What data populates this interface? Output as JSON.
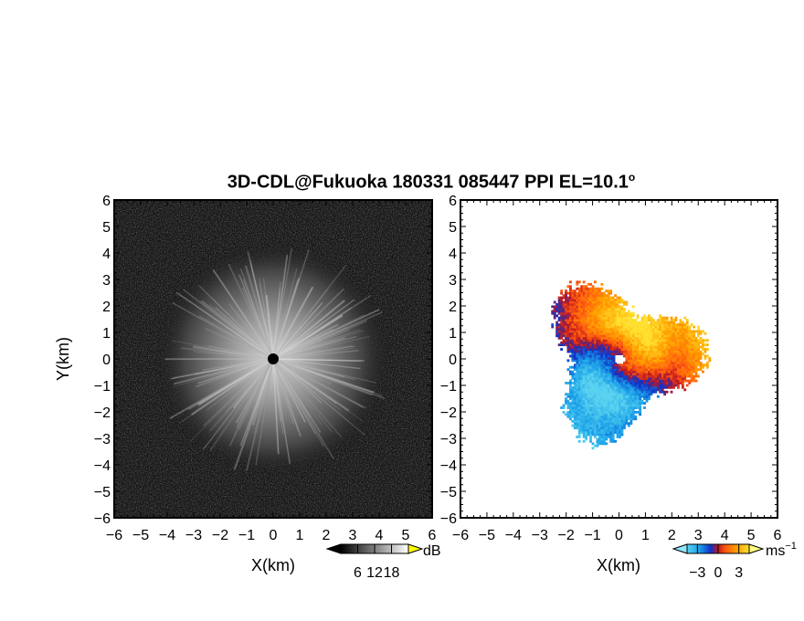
{
  "title": "3D-CDL@Fukuoka 180331 085447 PPI EL=10.1",
  "title_degree": "o",
  "colors": {
    "background": "#ffffff",
    "axes": "#000000"
  },
  "chart_data": [
    {
      "type": "heatmap",
      "panel": "left",
      "quantity": "SNR intensity (grayscale)",
      "xlabel": "X(km)",
      "ylabel": "Y(km)",
      "xlim": [
        -6,
        6
      ],
      "ylim": [
        -6,
        6
      ],
      "xticks": [
        -6,
        -5,
        -4,
        -3,
        -2,
        -1,
        0,
        1,
        2,
        3,
        4,
        5,
        6
      ],
      "yticks": [
        -6,
        -5,
        -4,
        -3,
        -2,
        -1,
        0,
        1,
        2,
        3,
        4,
        5,
        6
      ],
      "colormap": "grayscale",
      "colorbar": {
        "unit": "dB",
        "ticks": [
          6,
          12,
          18
        ],
        "range": [
          0,
          24
        ]
      },
      "features": {
        "echo_radius_km": 4.3,
        "center_blank": true
      }
    },
    {
      "type": "heatmap",
      "panel": "right",
      "quantity": "Doppler velocity",
      "xlabel": "X(km)",
      "xlim": [
        -6,
        6
      ],
      "ylim": [
        -6,
        6
      ],
      "xticks": [
        -6,
        -5,
        -4,
        -3,
        -2,
        -1,
        0,
        1,
        2,
        3,
        4,
        5,
        6
      ],
      "yticks": [
        -6,
        -5,
        -4,
        -3,
        -2,
        -1,
        0,
        1,
        2,
        3,
        4,
        5,
        6
      ],
      "colormap": "blue-cyan-red-yellow diverging",
      "colorbar": {
        "unit": "ms",
        "unit_exponent": "−1",
        "ticks": [
          -3,
          0,
          3
        ],
        "range": [
          -4.5,
          4.5
        ]
      },
      "features": {
        "echo_radius_km": 3.0,
        "approaching_side": "west/south",
        "receding_side": "north/east"
      }
    }
  ]
}
